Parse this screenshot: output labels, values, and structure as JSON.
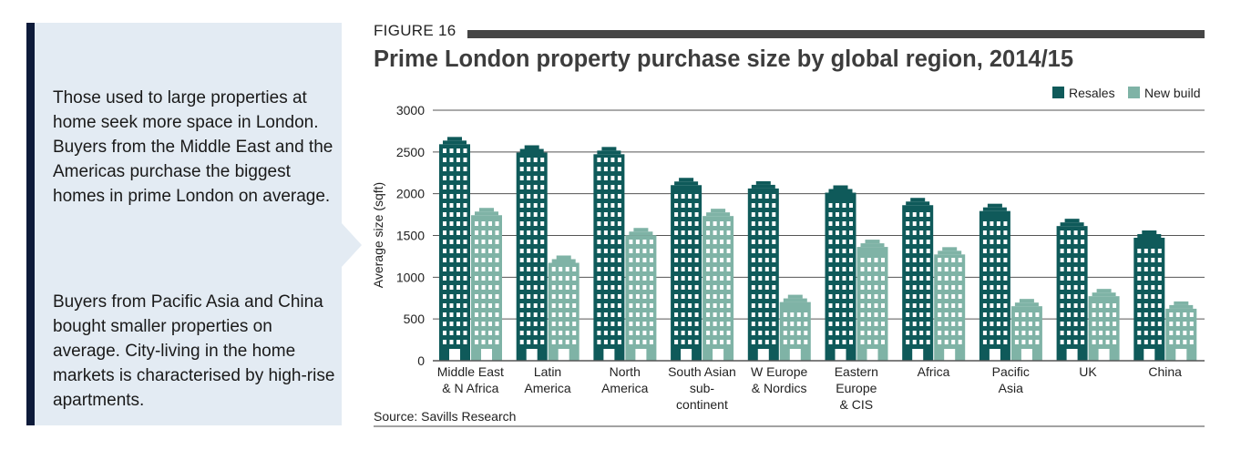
{
  "sidebar": {
    "paragraph1": "Those used to large properties at home seek more space in London. Buyers from the Middle East and the Americas purchase the biggest homes in prime London on average.",
    "paragraph2": "Buyers from Pacific Asia and China bought smaller properties on average. City-living in the home markets is characterised by high-rise apartments."
  },
  "figure": {
    "label": "FIGURE 16",
    "title": "Prime London property purchase size by global region, 2014/15",
    "source": "Source: Savills Research"
  },
  "colors": {
    "resales": "#0f5a5a",
    "new_build": "#7fb3a6",
    "sidebar_bg": "#e3ebf3",
    "sidebar_bar": "#0e1b3a",
    "title": "#3d3d3d"
  },
  "chart_data": {
    "type": "bar",
    "title": "Prime London property purchase size by global region, 2014/15",
    "xlabel": "",
    "ylabel": "Average size (sqft)",
    "ylim": [
      0,
      3000
    ],
    "yticks": [
      0,
      500,
      1000,
      1500,
      2000,
      2500,
      3000
    ],
    "grid": true,
    "legend": "top-right",
    "categories": [
      [
        "Middle East",
        "& N Africa"
      ],
      [
        "Latin",
        "America"
      ],
      [
        "North",
        "America"
      ],
      [
        "South Asian",
        "sub-",
        "continent"
      ],
      [
        "W Europe",
        "& Nordics"
      ],
      [
        "Eastern",
        "Europe",
        "& CIS"
      ],
      [
        "Africa"
      ],
      [
        "Pacific",
        "Asia"
      ],
      [
        "UK"
      ],
      [
        "China"
      ]
    ],
    "series": [
      {
        "name": "Resales",
        "values": [
          2680,
          2580,
          2560,
          2190,
          2150,
          2100,
          1950,
          1880,
          1700,
          1560
        ]
      },
      {
        "name": "New build",
        "values": [
          1830,
          1260,
          1590,
          1820,
          790,
          1450,
          1360,
          740,
          860,
          710
        ]
      }
    ]
  }
}
